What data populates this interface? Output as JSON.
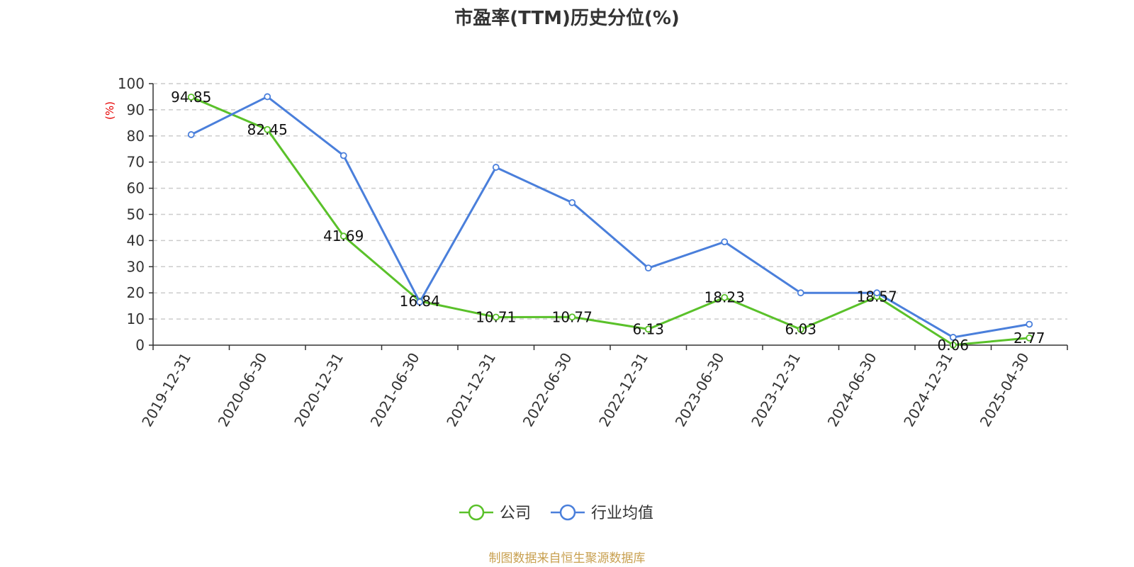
{
  "chart_data": {
    "type": "line",
    "title": "市盈率(TTM)历史分位(%)",
    "ylabel": "(%)",
    "xlabel": "",
    "ylim": [
      0,
      100
    ],
    "yticks": [
      0,
      10,
      20,
      30,
      40,
      50,
      60,
      70,
      80,
      90,
      100
    ],
    "grid": true,
    "legend_position": "bottom-center",
    "categories": [
      "2019-12-31",
      "2020-06-30",
      "2020-12-31",
      "2021-06-30",
      "2021-12-31",
      "2022-06-30",
      "2022-12-31",
      "2023-06-30",
      "2023-12-31",
      "2024-06-30",
      "2024-12-31",
      "2025-04-30"
    ],
    "series": [
      {
        "name": "公司",
        "color": "#5ac12a",
        "values": [
          94.85,
          82.45,
          41.69,
          16.84,
          10.71,
          10.77,
          6.13,
          18.23,
          6.03,
          18.57,
          0.06,
          2.77
        ],
        "labels": [
          "94.85",
          "82.45",
          "41.69",
          "16.84",
          "10.71",
          "10.77",
          "6.13",
          "18.23",
          "6.03",
          "18.57",
          "0.06",
          "2.77"
        ]
      },
      {
        "name": "行业均值",
        "color": "#4a7fdb",
        "values": [
          80.5,
          95,
          72.5,
          16.5,
          68,
          54.5,
          29.5,
          39.5,
          20,
          20,
          3,
          8
        ]
      }
    ],
    "source": "制图数据来自恒生聚源数据库",
    "colors": {
      "axis": "#333333",
      "grid": "#cccccc",
      "ylabel": "#e60000",
      "source": "#c8a050"
    }
  }
}
